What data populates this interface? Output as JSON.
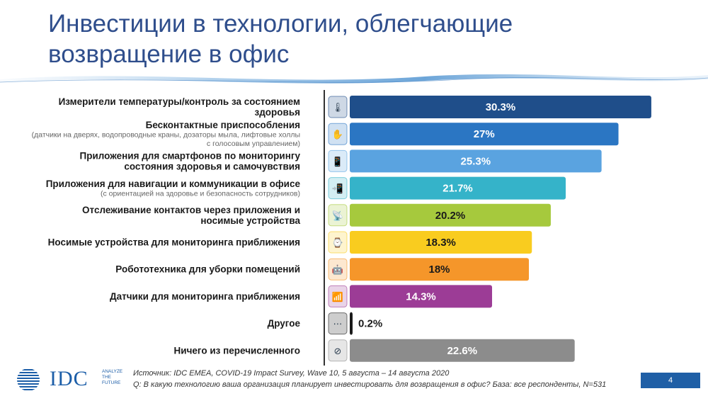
{
  "title": "Инвестиции в технологии, облегчающие возвращение в офис",
  "chart_data": {
    "type": "bar",
    "orientation": "horizontal",
    "xlim": [
      0,
      35
    ],
    "categories": [
      {
        "label": [
          "Измерители температуры/контроль за состоянием",
          "здоровья"
        ],
        "sublabel": [],
        "icon": "thermometer-icon",
        "value": 30.3,
        "display": "30.3%",
        "color": "#1f4e8a",
        "text_color": "#ffffff"
      },
      {
        "label": [
          "Бесконтактные приспособления"
        ],
        "sublabel": [
          "(датчики на дверях, водопроводные краны, дозаторы мыла, лифтовые холлы",
          "с голосовым управлением)"
        ],
        "icon": "touchless-hand-icon",
        "value": 27,
        "display": "27%",
        "color": "#2b76c3",
        "text_color": "#ffffff"
      },
      {
        "label": [
          "Приложения для смартфонов по мониторингу",
          "состояния здоровья и самочувствия"
        ],
        "sublabel": [],
        "icon": "smartphone-health-icon",
        "value": 25.3,
        "display": "25.3%",
        "color": "#5aa3e0",
        "text_color": "#ffffff"
      },
      {
        "label": [
          "Приложения для навигации и коммуникации в офисе"
        ],
        "sublabel": [
          "(с ориентацией на здоровье и безопасность сотрудников)"
        ],
        "icon": "phone-navigation-icon",
        "value": 21.7,
        "display": "21.7%",
        "color": "#35b3c9",
        "text_color": "#ffffff"
      },
      {
        "label": [
          "Отслеживание контактов через приложения и",
          "носимые устройства"
        ],
        "sublabel": [],
        "icon": "contact-tracing-icon",
        "value": 20.2,
        "display": "20.2%",
        "color": "#a6c93d",
        "text_color": "#1a1a1a"
      },
      {
        "label": [
          "Носимые устройства для мониторинга приближения"
        ],
        "sublabel": [],
        "icon": "proximity-wearable-icon",
        "value": 18.3,
        "display": "18.3%",
        "color": "#f9cc1f",
        "text_color": "#1a1a1a"
      },
      {
        "label": [
          "Робототехника для уборки помещений"
        ],
        "sublabel": [],
        "icon": "cleaning-robot-icon",
        "value": 18,
        "display": "18%",
        "color": "#f5962a",
        "text_color": "#1a1a1a"
      },
      {
        "label": [
          "Датчики для мониторинга приближения"
        ],
        "sublabel": [],
        "icon": "proximity-sensor-icon",
        "value": 14.3,
        "display": "14.3%",
        "color": "#9c3c96",
        "text_color": "#ffffff"
      },
      {
        "label": [
          "Другое"
        ],
        "sublabel": [],
        "icon": "document-other-icon",
        "value": 0.2,
        "display": "0.2%",
        "color": "#1a1a1a",
        "text_color": "#1a1a1a"
      },
      {
        "label": [
          "Ничего из перечисленного"
        ],
        "sublabel": [],
        "icon": "none-prohibited-icon",
        "value": 22.6,
        "display": "22.6%",
        "color": "#8c8c8c",
        "text_color": "#ffffff"
      }
    ]
  },
  "footer": {
    "source": "Источник: IDC EMEA, COVID-19 Impact Survey, Wave 10, 5 августа – 14 августа 2020",
    "question": "Q: В какую технологию ваша организация планирует инвестировать для возвращения в офис?  База: все респонденты, N=531",
    "logo_text": "IDC",
    "tagline": [
      "ANALYZE",
      "THE",
      "FUTURE"
    ],
    "page_number": "4"
  }
}
